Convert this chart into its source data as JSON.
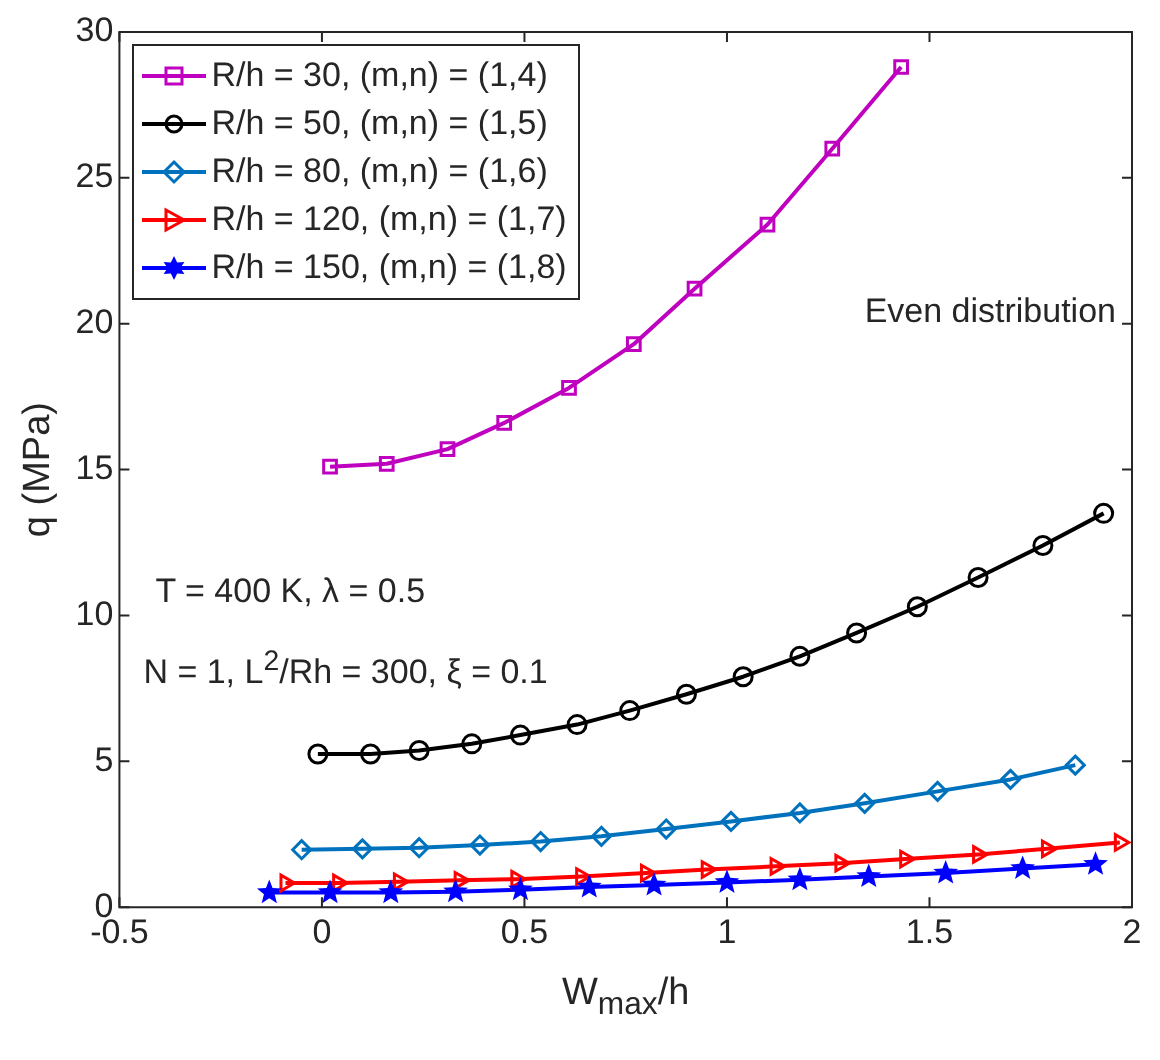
{
  "chart_data": {
    "type": "line",
    "xlabel": "W$_{max}$/h",
    "ylabel": "q (MPa)",
    "xlim": [
      -0.5,
      2
    ],
    "xticks": [
      -0.5,
      0,
      0.5,
      1,
      1.5,
      2
    ],
    "ylim": [
      0,
      30
    ],
    "yticks": [
      0,
      5,
      10,
      15,
      20,
      25,
      30
    ],
    "legend": "top left",
    "line_style": "solid",
    "annotations": [
      "T = 400 K, λ = 0.5",
      "N = 1, L$^{2}$/Rh = 300, ξ = 0.1",
      "Even distribution"
    ],
    "series": [
      {
        "name": "R/h = 30, (m,n) = (1,4)",
        "color": "#bf00bf",
        "marker": "square",
        "x": [
          0.02,
          0.16,
          0.31,
          0.45,
          0.61,
          0.77,
          0.92,
          1.1,
          1.26,
          1.43
        ],
        "values": [
          15.1,
          15.2,
          15.7,
          16.6,
          17.8,
          19.3,
          21.2,
          23.4,
          26.0,
          28.8
        ]
      },
      {
        "name": "R/h = 50, (m,n) = (1,5)",
        "color": "#000000",
        "marker": "circle",
        "x": [
          -0.01,
          0.12,
          0.24,
          0.37,
          0.49,
          0.63,
          0.76,
          0.9,
          1.04,
          1.18,
          1.32,
          1.47,
          1.62,
          1.78,
          1.93
        ],
        "values": [
          5.25,
          5.25,
          5.37,
          5.6,
          5.9,
          6.26,
          6.74,
          7.3,
          7.9,
          8.6,
          9.4,
          10.3,
          11.3,
          12.4,
          13.5
        ]
      },
      {
        "name": "R/h = 80, (m,n) = (1,6)",
        "color": "#0072bd",
        "marker": "diamond",
        "x": [
          -0.05,
          0.1,
          0.24,
          0.39,
          0.54,
          0.69,
          0.85,
          1.01,
          1.18,
          1.34,
          1.52,
          1.7,
          1.86
        ],
        "values": [
          1.97,
          2.0,
          2.04,
          2.13,
          2.25,
          2.43,
          2.68,
          2.94,
          3.23,
          3.56,
          3.97,
          4.38,
          4.87
        ]
      },
      {
        "name": "R/h = 120, (m,n) = (1,7)",
        "color": "#ff0000",
        "marker": "triangle-right",
        "x": [
          -0.09,
          0.04,
          0.19,
          0.34,
          0.48,
          0.64,
          0.8,
          0.95,
          1.12,
          1.28,
          1.44,
          1.62,
          1.79,
          1.97
        ],
        "values": [
          0.83,
          0.83,
          0.87,
          0.92,
          0.96,
          1.05,
          1.17,
          1.29,
          1.4,
          1.51,
          1.65,
          1.81,
          2.0,
          2.22
        ]
      },
      {
        "name": "R/h = 150, (m,n) = (1,8)",
        "color": "#0000ff",
        "marker": "star",
        "x": [
          -0.13,
          0.02,
          0.17,
          0.33,
          0.49,
          0.66,
          0.82,
          1.0,
          1.18,
          1.35,
          1.54,
          1.73,
          1.91
        ],
        "values": [
          0.5,
          0.5,
          0.5,
          0.53,
          0.6,
          0.69,
          0.76,
          0.85,
          0.94,
          1.05,
          1.17,
          1.33,
          1.47
        ]
      }
    ]
  }
}
